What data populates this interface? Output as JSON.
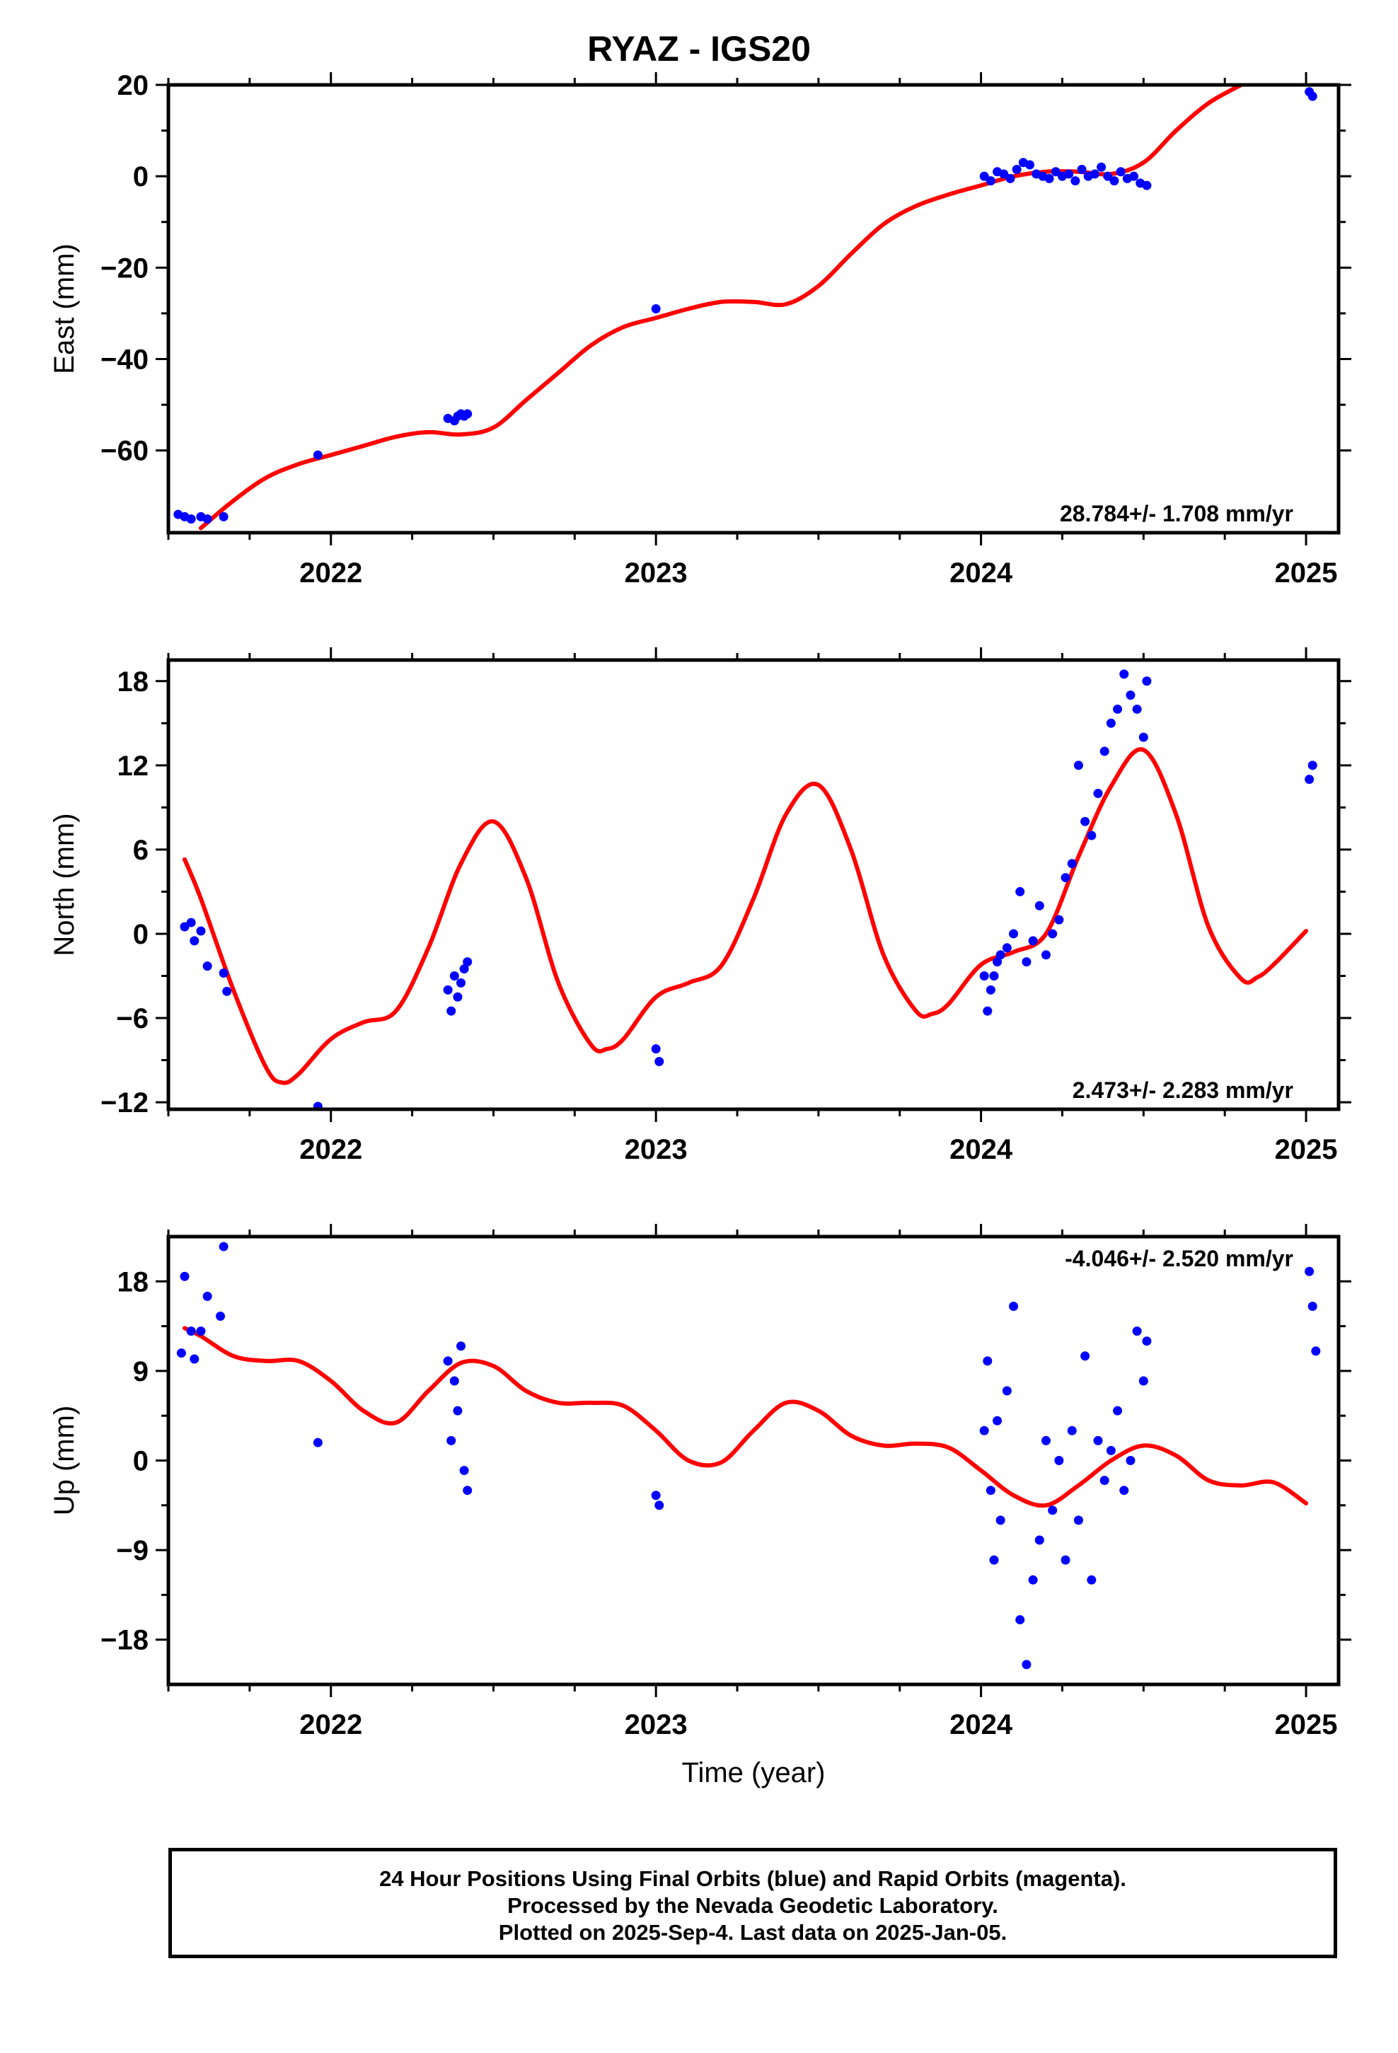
{
  "chart_data": [
    {
      "type": "scatter",
      "title": "RYAZ - IGS20",
      "ylabel": "East (mm)",
      "xlabel": "",
      "xlim": [
        2021.5,
        2025.1
      ],
      "ylim": [
        -78,
        20
      ],
      "xticks": [
        2022,
        2023,
        2024,
        2025
      ],
      "yticks": [
        -60,
        -40,
        -20,
        0,
        20
      ],
      "rate_text": "28.784+/- 1.708 mm/yr",
      "rate_position": "bottom-right",
      "point_color": "#0000ff",
      "fit_color": "#ff0000",
      "fit": {
        "x": [
          2021.6,
          2021.7,
          2021.8,
          2021.9,
          2022.0,
          2022.1,
          2022.2,
          2022.3,
          2022.4,
          2022.5,
          2022.6,
          2022.7,
          2022.8,
          2022.9,
          2023.0,
          2023.1,
          2023.2,
          2023.3,
          2023.4,
          2023.5,
          2023.6,
          2023.7,
          2023.8,
          2023.9,
          2024.0,
          2024.1,
          2024.2,
          2024.3,
          2024.4,
          2024.5,
          2024.6,
          2024.7,
          2024.8
        ],
        "y": [
          -77,
          -71,
          -66,
          -63,
          -61,
          -59,
          -57,
          -56,
          -56.5,
          -55,
          -49,
          -43,
          -37,
          -33,
          -31,
          -29,
          -27.5,
          -27.5,
          -28,
          -24,
          -17,
          -10.5,
          -6.5,
          -4,
          -2,
          0,
          1,
          1,
          0.5,
          3,
          10,
          16,
          20
        ]
      },
      "points": {
        "x": [
          2021.53,
          2021.55,
          2021.57,
          2021.6,
          2021.62,
          2021.67,
          2021.96,
          2022.36,
          2022.38,
          2022.39,
          2022.4,
          2022.41,
          2022.42,
          2023.0,
          2024.01,
          2024.03,
          2024.05,
          2024.07,
          2024.09,
          2024.11,
          2024.13,
          2024.15,
          2024.17,
          2024.19,
          2024.21,
          2024.23,
          2024.25,
          2024.27,
          2024.29,
          2024.31,
          2024.33,
          2024.35,
          2024.37,
          2024.39,
          2024.41,
          2024.43,
          2024.45,
          2024.47,
          2024.49,
          2024.51,
          2025.01,
          2025.02
        ],
        "y": [
          -74,
          -74.5,
          -75,
          -74.5,
          -75,
          -74.5,
          -61,
          -53,
          -53.5,
          -52.5,
          -52,
          -52.5,
          -52,
          -29,
          0,
          -1,
          1,
          0.5,
          -0.5,
          1.5,
          3,
          2.5,
          0.5,
          0,
          -0.5,
          1,
          0,
          0.5,
          -1,
          1.5,
          0,
          0.5,
          2,
          0,
          -1,
          1,
          -0.5,
          0,
          -1.5,
          -2,
          18.5,
          17.5
        ]
      }
    },
    {
      "type": "scatter",
      "ylabel": "North (mm)",
      "xlabel": "",
      "xlim": [
        2021.5,
        2025.1
      ],
      "ylim": [
        -12.5,
        19.5
      ],
      "xticks": [
        2022,
        2023,
        2024,
        2025
      ],
      "yticks": [
        -12,
        -6,
        0,
        6,
        12,
        18
      ],
      "rate_text": "2.473+/- 2.283 mm/yr",
      "rate_position": "bottom-right",
      "point_color": "#0000ff",
      "fit_color": "#ff0000",
      "fit": {
        "x": [
          2021.55,
          2021.6,
          2021.7,
          2021.8,
          2021.85,
          2021.9,
          2022.0,
          2022.1,
          2022.2,
          2022.3,
          2022.4,
          2022.5,
          2022.6,
          2022.7,
          2022.8,
          2022.85,
          2022.9,
          2023.0,
          2023.1,
          2023.2,
          2023.3,
          2023.4,
          2023.5,
          2023.6,
          2023.7,
          2023.8,
          2023.85,
          2023.9,
          2024.0,
          2024.1,
          2024.2,
          2024.3,
          2024.4,
          2024.5,
          2024.6,
          2024.7,
          2024.8,
          2024.85,
          2024.9,
          2025.0
        ],
        "y": [
          5.3,
          2.5,
          -4,
          -9.5,
          -10.6,
          -10,
          -7.5,
          -6.3,
          -5.5,
          -1,
          5,
          8,
          4,
          -3.5,
          -7.9,
          -8.2,
          -7.5,
          -4.5,
          -3.5,
          -2.3,
          2.5,
          8.5,
          10.6,
          6,
          -1.5,
          -5.5,
          -5.7,
          -5,
          -2.2,
          -1.3,
          0,
          5.5,
          10.5,
          13.1,
          8.5,
          0.5,
          -3.2,
          -3.1,
          -2.2,
          0.2
        ]
      },
      "points": {
        "x": [
          2021.55,
          2021.57,
          2021.58,
          2021.6,
          2021.62,
          2021.67,
          2021.68,
          2021.96,
          2022.36,
          2022.37,
          2022.38,
          2022.39,
          2022.4,
          2022.41,
          2022.42,
          2023.0,
          2023.01,
          2024.01,
          2024.02,
          2024.03,
          2024.04,
          2024.05,
          2024.06,
          2024.08,
          2024.1,
          2024.12,
          2024.14,
          2024.16,
          2024.18,
          2024.2,
          2024.22,
          2024.24,
          2024.26,
          2024.28,
          2024.3,
          2024.32,
          2024.34,
          2024.36,
          2024.38,
          2024.4,
          2024.42,
          2024.44,
          2024.46,
          2024.48,
          2024.5,
          2024.51,
          2025.01,
          2025.02
        ],
        "y": [
          0.5,
          0.8,
          -0.5,
          0.2,
          -2.3,
          -2.8,
          -4.1,
          -12.3,
          -4,
          -5.5,
          -3,
          -4.5,
          -3.5,
          -2.5,
          -2,
          -8.2,
          -9.1,
          -3,
          -5.5,
          -4,
          -3,
          -2,
          -1.5,
          -1,
          0,
          3,
          -2,
          -0.5,
          2,
          -1.5,
          0,
          1,
          4,
          5,
          12,
          8,
          7,
          10,
          13,
          15,
          16,
          18.5,
          17,
          16,
          14,
          18,
          11,
          12
        ]
      }
    },
    {
      "type": "scatter",
      "ylabel": "Up (mm)",
      "xlabel": "Time (year)",
      "xlim": [
        2021.5,
        2025.1
      ],
      "ylim": [
        -22.5,
        22.5
      ],
      "xticks": [
        2022,
        2023,
        2024,
        2025
      ],
      "yticks": [
        -18,
        -9,
        0,
        9,
        18
      ],
      "rate_text": "-4.046+/- 2.520 mm/yr",
      "rate_position": "top-right",
      "point_color": "#0000ff",
      "fit_color": "#ff0000",
      "fit": {
        "x": [
          2021.55,
          2021.6,
          2021.7,
          2021.8,
          2021.9,
          2022.0,
          2022.1,
          2022.2,
          2022.3,
          2022.4,
          2022.5,
          2022.6,
          2022.7,
          2022.8,
          2022.9,
          2023.0,
          2023.1,
          2023.2,
          2023.3,
          2023.4,
          2023.5,
          2023.6,
          2023.7,
          2023.8,
          2023.9,
          2024.0,
          2024.1,
          2024.2,
          2024.3,
          2024.4,
          2024.5,
          2024.6,
          2024.7,
          2024.8,
          2024.9,
          2025.0
        ],
        "y": [
          13.3,
          12.5,
          10.5,
          10,
          10,
          8,
          5,
          3.8,
          7,
          9.8,
          9.5,
          7,
          5.8,
          5.8,
          5.5,
          3,
          0,
          -0.2,
          3,
          5.8,
          5,
          2.5,
          1.5,
          1.7,
          1.3,
          -1,
          -3.5,
          -4.5,
          -2.5,
          0,
          1.5,
          0.5,
          -2,
          -2.5,
          -2.2,
          -4.3
        ]
      },
      "points": {
        "x": [
          2021.54,
          2021.55,
          2021.57,
          2021.58,
          2021.6,
          2021.62,
          2021.66,
          2021.67,
          2021.96,
          2022.36,
          2022.37,
          2022.38,
          2022.39,
          2022.4,
          2022.41,
          2022.42,
          2023.0,
          2023.01,
          2024.01,
          2024.02,
          2024.03,
          2024.04,
          2024.05,
          2024.06,
          2024.08,
          2024.1,
          2024.12,
          2024.14,
          2024.16,
          2024.18,
          2024.2,
          2024.22,
          2024.24,
          2024.26,
          2024.28,
          2024.3,
          2024.32,
          2024.34,
          2024.36,
          2024.38,
          2024.4,
          2024.42,
          2024.44,
          2024.46,
          2024.48,
          2024.5,
          2024.51,
          2025.01,
          2025.02,
          2025.03
        ],
        "y": [
          10.8,
          18.5,
          13,
          10.2,
          13,
          16.5,
          14.5,
          21.5,
          1.8,
          10,
          2,
          8,
          5,
          11.5,
          -1,
          -3,
          -3.5,
          -4.5,
          3,
          10,
          -3,
          -10,
          4,
          -6,
          7,
          15.5,
          -16,
          -20.5,
          -12,
          -8,
          2,
          -5,
          0,
          -10,
          3,
          -6,
          10.5,
          -12,
          2,
          -2,
          1,
          5,
          -3,
          0,
          13,
          8,
          12,
          19,
          15.5,
          11
        ]
      }
    }
  ],
  "footer": {
    "line1": "24 Hour Positions Using Final Orbits (blue) and Rapid Orbits (magenta).",
    "line2": "Processed by the Nevada Geodetic Laboratory.",
    "line3": "Plotted on 2025-Sep-4. Last data on 2025-Jan-05."
  }
}
